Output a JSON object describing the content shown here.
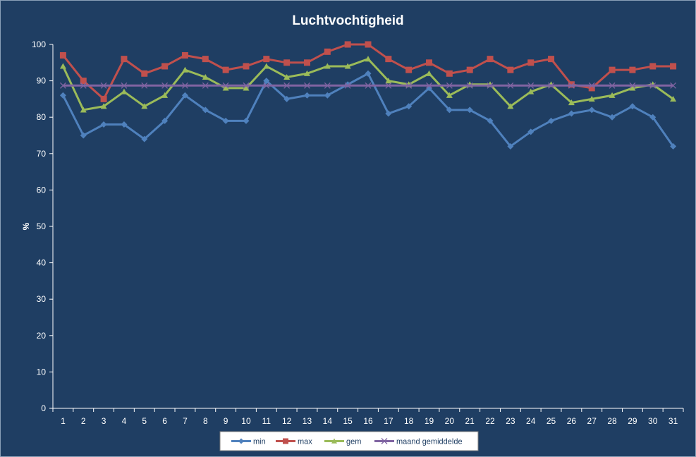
{
  "chart_data": {
    "type": "line",
    "title": "Luchtvochtigheid",
    "xlabel": "",
    "ylabel": "%",
    "ylim": [
      0,
      100
    ],
    "yticks": [
      0,
      10,
      20,
      30,
      40,
      50,
      60,
      70,
      80,
      90,
      100
    ],
    "grid": false,
    "legend_position": "bottom",
    "categories": [
      "1",
      "2",
      "3",
      "4",
      "5",
      "6",
      "7",
      "8",
      "9",
      "10",
      "11",
      "12",
      "13",
      "14",
      "15",
      "16",
      "17",
      "18",
      "19",
      "20",
      "21",
      "22",
      "23",
      "24",
      "25",
      "26",
      "27",
      "28",
      "29",
      "30",
      "31"
    ],
    "series": [
      {
        "name": "min",
        "color": "#4f81bd",
        "marker": "diamond",
        "values": [
          86,
          75,
          78,
          78,
          74,
          79,
          86,
          82,
          79,
          79,
          90,
          85,
          86,
          86,
          89,
          92,
          81,
          83,
          88,
          82,
          82,
          79,
          72,
          76,
          79,
          81,
          82,
          80,
          83,
          80,
          72
        ]
      },
      {
        "name": "max",
        "color": "#c0504d",
        "marker": "square",
        "values": [
          97,
          90,
          85,
          96,
          92,
          94,
          97,
          96,
          93,
          94,
          96,
          95,
          95,
          98,
          100,
          100,
          96,
          93,
          95,
          92,
          93,
          96,
          93,
          95,
          96,
          89,
          88,
          93,
          93,
          94,
          94
        ]
      },
      {
        "name": "gem",
        "color": "#9bbb59",
        "marker": "triangle",
        "values": [
          94,
          82,
          83,
          87,
          83,
          86,
          93,
          91,
          88,
          88,
          94,
          91,
          92,
          94,
          94,
          96,
          90,
          89,
          92,
          86,
          89,
          89,
          83,
          87,
          89,
          84,
          85,
          86,
          88,
          89,
          85
        ]
      },
      {
        "name": "maand gemiddelde",
        "color": "#8064a2",
        "marker": "x",
        "values": [
          88.7,
          88.7,
          88.7,
          88.7,
          88.7,
          88.7,
          88.7,
          88.7,
          88.7,
          88.7,
          88.7,
          88.7,
          88.7,
          88.7,
          88.7,
          88.7,
          88.7,
          88.7,
          88.7,
          88.7,
          88.7,
          88.7,
          88.7,
          88.7,
          88.7,
          88.7,
          88.7,
          88.7,
          88.7,
          88.7,
          88.7
        ]
      }
    ]
  }
}
